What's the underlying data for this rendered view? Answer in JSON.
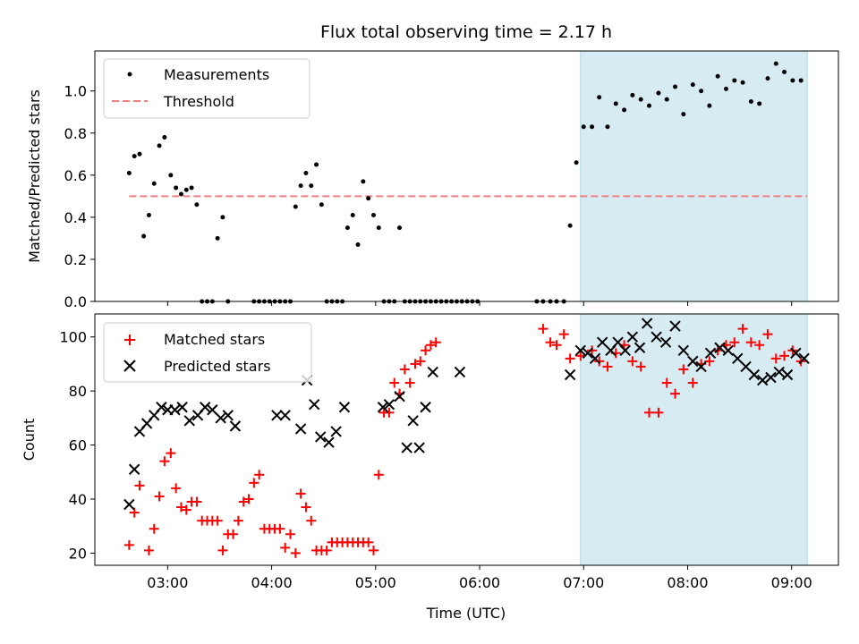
{
  "chart_data": {
    "type": "scatter",
    "title": "Flux total observing time = 2.17 h",
    "xlabel": "Time (UTC)",
    "x_unit": "hours UTC",
    "xlim": [
      2.3,
      9.45
    ],
    "xticks": [
      {
        "value": 3,
        "label": "03:00"
      },
      {
        "value": 4,
        "label": "04:00"
      },
      {
        "value": 5,
        "label": "05:00"
      },
      {
        "value": 6,
        "label": "06:00"
      },
      {
        "value": 7,
        "label": "07:00"
      },
      {
        "value": 8,
        "label": "08:00"
      },
      {
        "value": 9,
        "label": "09:00"
      }
    ],
    "highlight_region": {
      "x_start": 6.97,
      "x_end": 9.15,
      "color": "#add8e6"
    },
    "panels": [
      {
        "name": "ratio",
        "ylabel": "Matched/Predicted stars",
        "ylim": [
          0,
          1.19
        ],
        "yticks": [
          {
            "value": 0,
            "label": "0.0"
          },
          {
            "value": 0.2,
            "label": "0.2"
          },
          {
            "value": 0.4,
            "label": "0.4"
          },
          {
            "value": 0.6,
            "label": "0.6"
          },
          {
            "value": 0.8,
            "label": "0.8"
          },
          {
            "value": 1.0,
            "label": "1.0"
          }
        ],
        "legend": {
          "placement": "upper-left",
          "entries": [
            "Measurements",
            "Threshold"
          ]
        },
        "threshold": {
          "name": "Threshold",
          "value": 0.5,
          "x_range": [
            2.63,
            9.15
          ],
          "color": "#f08080"
        },
        "series": [
          {
            "name": "Measurements",
            "marker": "dot",
            "color": "#000000",
            "x": [
              2.63,
              2.68,
              2.73,
              2.77,
              2.82,
              2.87,
              2.92,
              2.97,
              3.03,
              3.08,
              3.13,
              3.18,
              3.23,
              3.28,
              3.33,
              3.38,
              3.43,
              3.48,
              3.53,
              3.58,
              3.83,
              3.88,
              3.93,
              3.98,
              4.03,
              4.08,
              4.13,
              4.18,
              4.23,
              4.28,
              4.33,
              4.38,
              4.43,
              4.48,
              4.53,
              4.58,
              4.63,
              4.68,
              4.73,
              4.78,
              4.83,
              4.88,
              4.93,
              4.98,
              5.03,
              5.08,
              5.13,
              5.18,
              5.23,
              5.28,
              5.33,
              5.38,
              5.43,
              5.48,
              5.53,
              5.58,
              5.63,
              5.68,
              5.73,
              5.78,
              5.83,
              5.88,
              5.93,
              5.98,
              6.55,
              6.61,
              6.68,
              6.74,
              6.81,
              6.87,
              6.93,
              7.0,
              7.08,
              7.15,
              7.23,
              7.31,
              7.39,
              7.47,
              7.55,
              7.63,
              7.72,
              7.8,
              7.88,
              7.96,
              8.05,
              8.13,
              8.21,
              8.29,
              8.37,
              8.45,
              8.53,
              8.61,
              8.69,
              8.77,
              8.85,
              8.93,
              9.01,
              9.09
            ],
            "values": [
              0.61,
              0.69,
              0.7,
              0.31,
              0.41,
              0.56,
              0.74,
              0.78,
              0.6,
              0.54,
              0.51,
              0.53,
              0.54,
              0.46,
              0.0,
              0.0,
              0.0,
              0.3,
              0.4,
              0.0,
              0.0,
              0.0,
              0.0,
              0.0,
              0.0,
              0.0,
              0.0,
              0.0,
              0.45,
              0.55,
              0.61,
              0.55,
              0.65,
              0.46,
              0.0,
              0.0,
              0.0,
              0.0,
              0.35,
              0.41,
              0.27,
              0.57,
              0.49,
              0.41,
              0.35,
              0.0,
              0.0,
              0.0,
              0.35,
              0.0,
              0.0,
              0.0,
              0.0,
              0.0,
              0.0,
              0.0,
              0.0,
              0.0,
              0.0,
              0.0,
              0.0,
              0.0,
              0.0,
              0.0,
              0.0,
              0.0,
              0.0,
              0.0,
              0.0,
              0.36,
              0.66,
              0.83,
              0.83,
              0.97,
              0.83,
              0.94,
              0.91,
              0.98,
              0.96,
              0.93,
              0.99,
              0.96,
              1.02,
              0.89,
              1.03,
              1.0,
              0.93,
              1.07,
              1.01,
              1.05,
              1.04,
              0.95,
              0.94,
              1.06,
              1.13,
              1.09,
              1.05,
              1.05
            ]
          }
        ]
      },
      {
        "name": "counts",
        "ylabel": "Count",
        "ylim": [
          15.5,
          108.5
        ],
        "yticks": [
          {
            "value": 20,
            "label": "20"
          },
          {
            "value": 40,
            "label": "40"
          },
          {
            "value": 60,
            "label": "60"
          },
          {
            "value": 80,
            "label": "80"
          },
          {
            "value": 100,
            "label": "100"
          }
        ],
        "legend": {
          "placement": "upper-left",
          "entries": [
            "Matched stars",
            "Predicted stars"
          ]
        },
        "series": [
          {
            "name": "Matched stars",
            "marker": "plus",
            "color": "#ff0000",
            "x": [
              2.63,
              2.68,
              2.73,
              2.82,
              2.87,
              2.92,
              2.97,
              3.03,
              3.08,
              3.13,
              3.18,
              3.23,
              3.28,
              3.33,
              3.38,
              3.43,
              3.48,
              3.53,
              3.58,
              3.63,
              3.68,
              3.73,
              3.78,
              3.83,
              3.88,
              3.93,
              3.98,
              4.03,
              4.08,
              4.13,
              4.18,
              4.23,
              4.28,
              4.33,
              4.38,
              4.43,
              4.48,
              4.53,
              4.58,
              4.63,
              4.68,
              4.73,
              4.78,
              4.83,
              4.88,
              4.93,
              4.98,
              5.03,
              5.08,
              5.13,
              5.18,
              5.23,
              5.28,
              5.33,
              5.38,
              5.43,
              5.48,
              5.53,
              5.58,
              6.61,
              6.68,
              6.74,
              6.81,
              6.87,
              6.97,
              7.08,
              7.15,
              7.23,
              7.31,
              7.39,
              7.47,
              7.55,
              7.63,
              7.72,
              7.8,
              7.88,
              7.96,
              8.05,
              8.13,
              8.21,
              8.29,
              8.37,
              8.45,
              8.53,
              8.61,
              8.69,
              8.77,
              8.85,
              8.93,
              9.01,
              9.09
            ],
            "values": [
              23,
              35,
              45,
              21,
              29,
              41,
              54,
              57,
              44,
              37,
              36,
              39,
              39,
              32,
              32,
              32,
              32,
              21,
              27,
              27,
              32,
              39,
              40,
              46,
              49,
              29,
              29,
              29,
              29,
              22,
              27,
              20,
              42,
              37,
              32,
              21,
              21,
              21,
              24,
              24,
              24,
              24,
              24,
              24,
              24,
              24,
              21,
              49,
              72,
              72,
              83,
              79,
              88,
              83,
              90,
              91,
              95,
              97,
              98,
              103,
              98,
              97,
              101,
              92,
              93,
              95,
              91,
              89,
              94,
              97,
              91,
              89,
              72,
              72,
              83,
              79,
              88,
              83,
              90,
              91,
              95,
              97,
              98,
              103,
              98,
              97,
              101,
              92,
              93,
              95,
              91
            ],
            "x_shown": [
              2.63,
              2.68,
              2.73,
              2.82,
              2.87,
              2.92,
              2.97,
              3.03,
              3.08,
              3.13,
              3.18,
              3.23,
              3.28,
              3.33,
              3.38,
              3.43,
              3.48,
              3.53,
              3.58,
              3.63,
              3.68,
              3.73,
              3.78,
              3.83,
              3.88,
              3.93,
              3.98,
              4.03,
              4.08,
              4.13,
              4.18,
              4.23,
              4.28,
              4.33,
              4.38,
              4.43,
              4.48,
              4.53,
              4.58,
              4.63,
              4.68,
              4.73,
              4.78,
              4.83,
              4.88,
              4.93,
              4.98,
              5.03,
              5.08,
              5.13
            ]
          },
          {
            "name": "Predicted stars",
            "marker": "x",
            "color": "#000000",
            "x": [
              2.63,
              2.68,
              2.73,
              2.8,
              2.87,
              2.94,
              3.0,
              3.07,
              3.14,
              3.21,
              3.29,
              3.36,
              3.43,
              3.51,
              3.58,
              3.65,
              4.05,
              4.13,
              4.28,
              4.34,
              4.41,
              4.47,
              4.55,
              4.62,
              4.7,
              5.07,
              5.13,
              5.23,
              5.3,
              5.36,
              5.42,
              5.48,
              5.55,
              5.81,
              6.87,
              6.97,
              7.04,
              7.11,
              7.18,
              7.26,
              7.33,
              7.4,
              7.47,
              7.54,
              7.61,
              7.7,
              7.79,
              7.88,
              7.96,
              8.05,
              8.13,
              8.22,
              8.31,
              8.39,
              8.48,
              8.56,
              8.64,
              8.72,
              8.8,
              8.88,
              8.96,
              9.04,
              9.12
            ],
            "values": [
              38,
              51,
              65,
              68,
              71,
              74,
              73,
              73,
              74,
              69,
              71,
              74,
              73,
              70,
              71,
              67,
              71,
              71,
              66,
              84,
              75,
              63,
              61,
              65,
              74,
              74,
              75,
              78,
              59,
              69,
              59,
              74,
              87,
              87,
              86,
              95,
              94,
              92,
              98,
              95,
              98,
              95,
              100,
              96,
              105,
              100,
              98,
              104,
              95,
              91,
              89,
              94,
              96,
              95,
              92,
              89,
              86,
              84,
              85,
              87,
              86,
              94,
              92
            ]
          }
        ]
      }
    ]
  }
}
